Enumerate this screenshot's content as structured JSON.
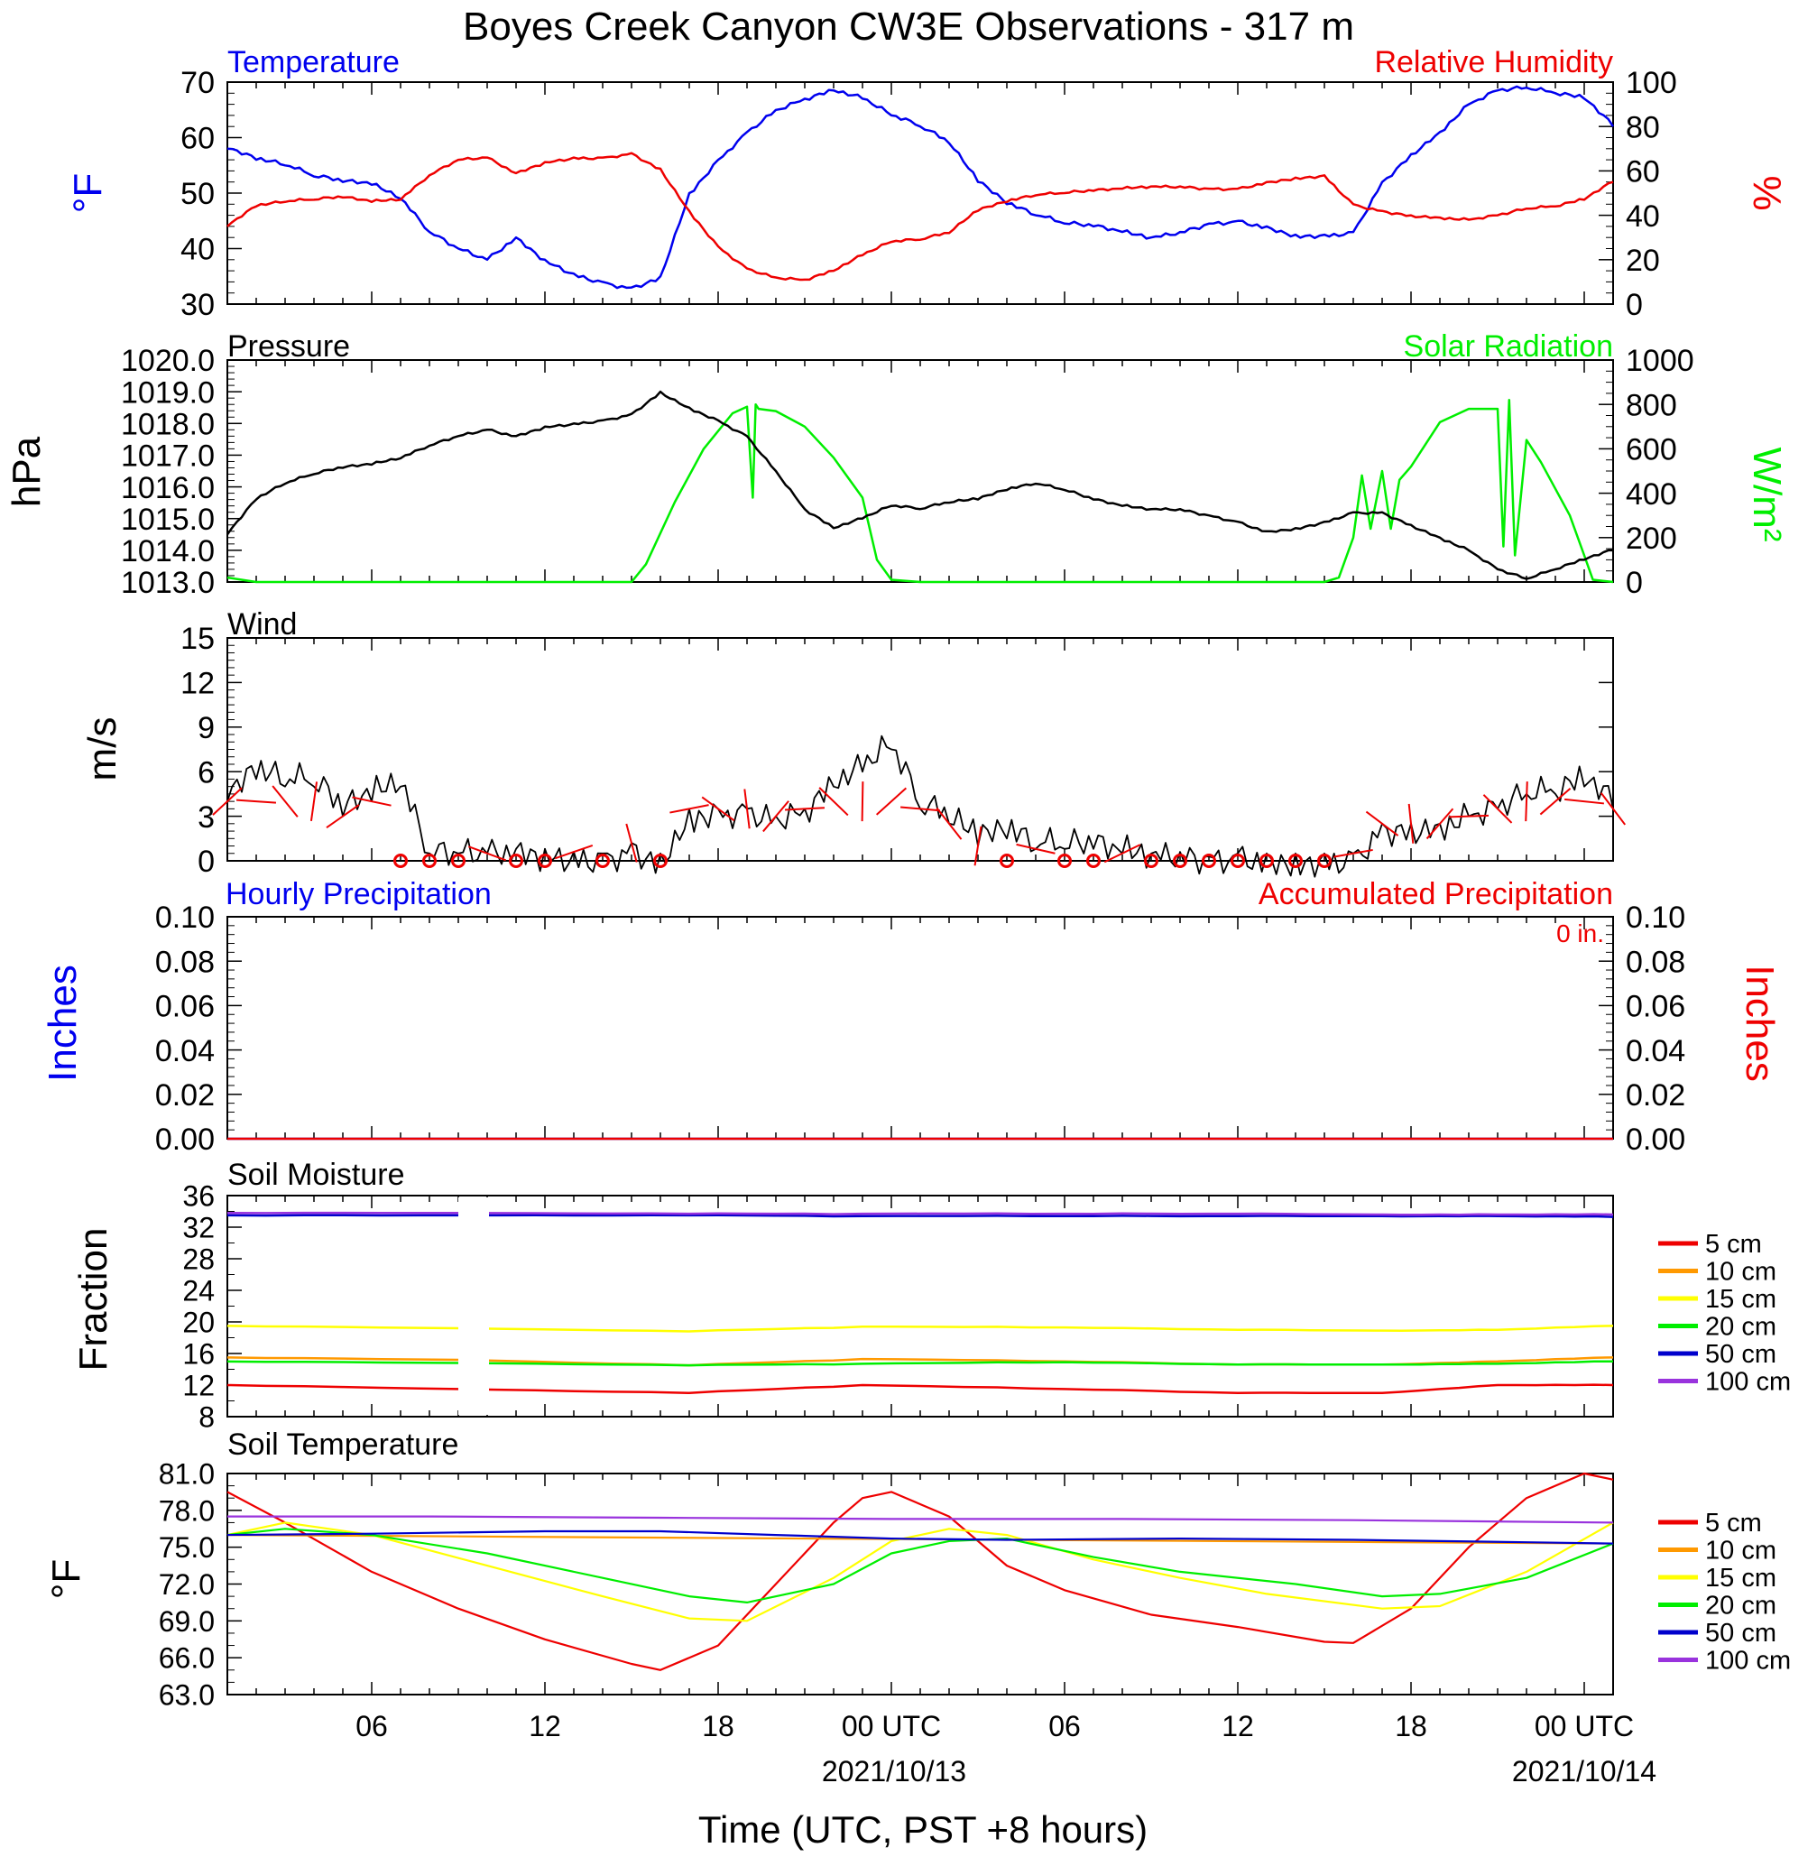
{
  "title": "Boyes Creek Canyon CW3E Observations - 317 m",
  "colors": {
    "blue": "#0000ee",
    "red": "#ee0000",
    "green": "#00ee00",
    "black": "#000000",
    "orange": "#ff9900",
    "yellow": "#ffff00",
    "purple": "#9933dd",
    "navy": "#0000cc"
  },
  "time_axis": {
    "tick_labels": [
      "06",
      "12",
      "18",
      "00 UTC",
      "06",
      "12",
      "18",
      "00 UTC"
    ],
    "date_labels": [
      "2021/10/13",
      "2021/10/14"
    ],
    "xlabel": "Time (UTC, PST +8 hours)"
  },
  "panels": {
    "temp_rh": {
      "left_title": "Temperature",
      "right_title": "Relative Humidity",
      "left_unit": "°F",
      "right_unit": "%",
      "left_ticks": [
        "70",
        "60",
        "50",
        "40",
        "30"
      ],
      "right_ticks": [
        "100",
        "80",
        "60",
        "40",
        "20",
        "0"
      ]
    },
    "pressure_solar": {
      "left_title": "Pressure",
      "right_title": "Solar Radiation",
      "left_unit": "hPa",
      "right_unit": "W/m²",
      "left_ticks": [
        "1020.0",
        "1019.0",
        "1018.0",
        "1017.0",
        "1016.0",
        "1015.0",
        "1014.0",
        "1013.0"
      ],
      "right_ticks": [
        "1000",
        "800",
        "600",
        "400",
        "200",
        "0"
      ]
    },
    "wind": {
      "title": "Wind",
      "unit": "m/s",
      "ticks": [
        "15",
        "12",
        "9",
        "6",
        "3",
        "0"
      ]
    },
    "precip": {
      "left_title": "Hourly Precipitation",
      "right_title": "Accumulated Precipitation",
      "annotation": "0 in.",
      "left_unit": "Inches",
      "right_unit": "Inches",
      "left_ticks": [
        "0.10",
        "0.08",
        "0.06",
        "0.04",
        "0.02",
        "0.00"
      ],
      "right_ticks": [
        "0.10",
        "0.08",
        "0.06",
        "0.04",
        "0.02",
        "0.00"
      ]
    },
    "soil_moisture": {
      "title": "Soil Moisture",
      "unit": "Fraction",
      "ticks": [
        "36",
        "32",
        "28",
        "24",
        "20",
        "16",
        "12",
        "8"
      ],
      "legend": [
        "5 cm",
        "10 cm",
        "15 cm",
        "20 cm",
        "50 cm",
        "100 cm"
      ]
    },
    "soil_temp": {
      "title": "Soil Temperature",
      "unit": "°F",
      "ticks": [
        "81.0",
        "78.0",
        "75.0",
        "72.0",
        "69.0",
        "66.0",
        "63.0"
      ],
      "legend": [
        "5 cm",
        "10 cm",
        "15 cm",
        "20 cm",
        "50 cm",
        "100 cm"
      ]
    }
  },
  "chart_data": [
    {
      "type": "line",
      "title": "Temperature / Relative Humidity",
      "x_range_hours_utc": [
        1,
        49
      ],
      "ylim_left": [
        30,
        70
      ],
      "ylim_right": [
        0,
        100
      ],
      "series": [
        {
          "name": "Temperature",
          "axis": "left",
          "color": "#0000ee",
          "x": [
            1,
            2,
            3,
            4,
            5,
            6,
            7,
            8,
            9,
            10,
            11,
            12,
            13,
            14,
            15,
            16,
            17,
            18,
            19,
            20,
            21,
            22,
            23,
            24,
            25,
            26,
            27,
            28,
            29,
            30,
            31,
            32,
            33,
            34,
            35,
            36,
            37,
            38,
            39,
            40,
            41,
            42,
            43,
            44,
            45,
            46,
            47,
            48,
            49
          ],
          "y": [
            58,
            56,
            55,
            53,
            52,
            51.5,
            49,
            43,
            40,
            38,
            42,
            38,
            35.5,
            34,
            33,
            35,
            50,
            56,
            61,
            65,
            67,
            68.5,
            67,
            64,
            62,
            59,
            52,
            48,
            46,
            44.5,
            44,
            43,
            42,
            43,
            44.5,
            45,
            44,
            42.5,
            42.5,
            43,
            52,
            57,
            61,
            66,
            68.5,
            69,
            68,
            67,
            62
          ]
        },
        {
          "name": "Relative Humidity",
          "axis": "right",
          "color": "#ee0000",
          "x": [
            1,
            2,
            3,
            4,
            5,
            6,
            7,
            8,
            9,
            10,
            11,
            12,
            13,
            14,
            15,
            16,
            17,
            18,
            19,
            20,
            21,
            22,
            23,
            24,
            25,
            26,
            27,
            28,
            29,
            30,
            31,
            32,
            33,
            34,
            35,
            36,
            37,
            38,
            39,
            40,
            41,
            42,
            43,
            44,
            45,
            46,
            47,
            48,
            49
          ],
          "y": [
            35,
            44,
            46,
            47,
            48,
            46,
            47,
            58,
            65,
            66,
            59,
            64,
            66,
            66,
            68,
            61,
            42,
            26,
            16,
            12,
            11,
            15,
            22,
            28,
            29,
            32,
            42,
            46,
            49,
            50,
            51,
            52,
            53,
            53,
            52,
            52,
            55,
            57,
            58,
            45,
            42,
            40,
            39,
            38,
            40,
            43,
            44,
            47,
            55
          ]
        }
      ]
    },
    {
      "type": "line",
      "title": "Pressure / Solar Radiation",
      "x_range_hours_utc": [
        1,
        49
      ],
      "ylim_left": [
        1013.0,
        1020.0
      ],
      "ylim_right": [
        0,
        1000
      ],
      "series": [
        {
          "name": "Pressure",
          "axis": "left",
          "color": "#000000",
          "x": [
            1,
            2,
            3,
            4,
            5,
            6,
            7,
            8,
            9,
            10,
            11,
            12,
            13,
            14,
            15,
            16,
            17,
            18,
            19,
            20,
            21,
            22,
            23,
            24,
            25,
            26,
            27,
            28,
            29,
            30,
            31,
            32,
            33,
            34,
            35,
            36,
            37,
            38,
            39,
            40,
            41,
            42,
            43,
            44,
            45,
            46,
            47,
            48,
            49
          ],
          "y": [
            1014.5,
            1015.6,
            1016.1,
            1016.4,
            1016.6,
            1016.7,
            1016.9,
            1017.3,
            1017.6,
            1017.8,
            1017.6,
            1017.9,
            1018.0,
            1018.1,
            1018.3,
            1019.0,
            1018.5,
            1018.1,
            1017.6,
            1016.5,
            1015.3,
            1014.7,
            1015.0,
            1015.4,
            1015.3,
            1015.5,
            1015.6,
            1015.9,
            1016.1,
            1015.9,
            1015.6,
            1015.4,
            1015.3,
            1015.3,
            1015.1,
            1014.9,
            1014.6,
            1014.7,
            1014.9,
            1015.2,
            1015.2,
            1014.8,
            1014.4,
            1014.0,
            1013.4,
            1013.1,
            1013.4,
            1013.7,
            1014.0
          ]
        },
        {
          "name": "Solar Radiation",
          "axis": "right",
          "color": "#00ee00",
          "x": [
            1,
            2,
            14,
            15,
            15.5,
            16.5,
            17.5,
            18.5,
            19,
            19.2,
            19.3,
            19.4,
            20,
            21,
            22,
            23,
            23.5,
            24,
            25,
            39,
            39.5,
            40,
            40.3,
            40.6,
            41,
            41.3,
            41.6,
            42,
            43,
            44,
            45,
            45.2,
            45.4,
            45.6,
            46,
            46.5,
            47,
            47.5,
            48,
            48.3,
            49
          ],
          "y": [
            20,
            0,
            0,
            0,
            80,
            360,
            600,
            760,
            790,
            380,
            800,
            780,
            770,
            700,
            560,
            380,
            100,
            10,
            0,
            0,
            20,
            200,
            480,
            240,
            500,
            240,
            460,
            520,
            720,
            780,
            780,
            160,
            820,
            120,
            640,
            540,
            420,
            300,
            120,
            10,
            0
          ]
        }
      ]
    },
    {
      "type": "line",
      "title": "Wind",
      "x_range_hours_utc": [
        1,
        49
      ],
      "ylim": [
        0,
        15
      ],
      "series": [
        {
          "name": "Wind",
          "color": "#000000",
          "x": [
            1,
            2,
            3,
            4,
            5,
            6,
            7,
            8,
            9,
            10,
            11,
            12,
            13,
            14,
            15,
            16,
            17,
            18,
            19,
            20,
            21,
            22,
            23,
            24,
            25,
            26,
            27,
            28,
            29,
            30,
            31,
            32,
            33,
            34,
            35,
            36,
            37,
            38,
            39,
            40,
            41,
            42,
            43,
            44,
            45,
            46,
            47,
            48,
            49
          ],
          "y": [
            4,
            5.5,
            5,
            5,
            3,
            4,
            5,
            0.5,
            0.5,
            0.5,
            0.8,
            0.8,
            0.6,
            0.5,
            1.2,
            0.5,
            3.5,
            3.5,
            3.5,
            3.0,
            3.5,
            5,
            6,
            7.5,
            3.5,
            2.5,
            1,
            1.5,
            0.8,
            0.8,
            0.8,
            0.5,
            0.5,
            0.6,
            0.3,
            0.5,
            0.5,
            0.5,
            0.5,
            0.5,
            2.5,
            2.5,
            2.5,
            3.0,
            3.5,
            4.5,
            4.5,
            5.0,
            3.5
          ]
        }
      ],
      "calm_hours": [
        7,
        8,
        9,
        11,
        12,
        14,
        16,
        28,
        30,
        31,
        33,
        34,
        35,
        36,
        37,
        38,
        39
      ]
    },
    {
      "type": "line",
      "title": "Hourly / Accumulated Precipitation",
      "x_range_hours_utc": [
        1,
        49
      ],
      "ylim_left": [
        0,
        0.1
      ],
      "ylim_right": [
        0,
        0.1
      ],
      "series": [
        {
          "name": "Hourly Precipitation",
          "color": "#0000ee",
          "x": [
            1,
            49
          ],
          "y": [
            0,
            0
          ]
        },
        {
          "name": "Accumulated Precipitation",
          "color": "#ee0000",
          "x": [
            1,
            49
          ],
          "y": [
            0,
            0
          ]
        }
      ]
    },
    {
      "type": "line",
      "title": "Soil Moisture",
      "x_range_hours_utc": [
        1,
        49
      ],
      "ylim": [
        8,
        36
      ],
      "series": [
        {
          "name": "5 cm",
          "color": "#ee0000",
          "x": [
            1,
            9,
            17,
            23,
            30,
            36,
            41,
            45,
            49
          ],
          "y": [
            12.0,
            11.5,
            11.0,
            12.0,
            11.5,
            11.0,
            11.0,
            12.0,
            12.0
          ]
        },
        {
          "name": "10 cm",
          "color": "#ff9900",
          "x": [
            1,
            9,
            17,
            23,
            30,
            36,
            41,
            45,
            49
          ],
          "y": [
            15.5,
            15.2,
            14.5,
            15.3,
            15.0,
            14.6,
            14.6,
            15.0,
            15.5
          ]
        },
        {
          "name": "15 cm",
          "color": "#ffff00",
          "x": [
            1,
            9,
            17,
            23,
            30,
            36,
            41,
            45,
            49
          ],
          "y": [
            19.5,
            19.2,
            18.8,
            19.4,
            19.3,
            19.0,
            18.9,
            19.0,
            19.5
          ]
        },
        {
          "name": "20 cm",
          "color": "#00ee00",
          "x": [
            1,
            9,
            17,
            23,
            30,
            36,
            41,
            45,
            49
          ],
          "y": [
            15.0,
            14.8,
            14.5,
            14.7,
            14.9,
            14.6,
            14.6,
            14.7,
            15.0
          ]
        },
        {
          "name": "50 cm",
          "color": "#0000cc",
          "x": [
            1,
            9,
            17,
            23,
            30,
            36,
            41,
            45,
            49
          ],
          "y": [
            33.5,
            33.5,
            33.5,
            33.4,
            33.4,
            33.4,
            33.4,
            33.4,
            33.3
          ]
        },
        {
          "name": "100 cm",
          "color": "#9933dd",
          "x": [
            1,
            9,
            17,
            23,
            30,
            36,
            41,
            45,
            49
          ],
          "y": [
            33.8,
            33.8,
            33.7,
            33.7,
            33.7,
            33.7,
            33.6,
            33.6,
            33.6
          ]
        }
      ]
    },
    {
      "type": "line",
      "title": "Soil Temperature",
      "x_range_hours_utc": [
        1,
        49
      ],
      "ylim": [
        63,
        81
      ],
      "series": [
        {
          "name": "5 cm",
          "color": "#ee0000",
          "x": [
            1,
            3,
            6,
            9,
            12,
            15,
            16,
            18,
            20,
            22,
            23,
            24,
            26,
            28,
            30,
            33,
            36,
            39,
            40,
            42,
            44,
            46,
            48,
            49
          ],
          "y": [
            79.5,
            77,
            73,
            70,
            67.5,
            65.5,
            65,
            67,
            72,
            77,
            79,
            79.5,
            77.5,
            73.5,
            71.5,
            69.5,
            68.5,
            67.3,
            67.2,
            70,
            75,
            79,
            81,
            80.5
          ]
        },
        {
          "name": "10 cm",
          "color": "#ff9900",
          "x": [
            1,
            49
          ],
          "y": [
            76.0,
            75.3
          ]
        },
        {
          "name": "15 cm",
          "color": "#ffff00",
          "x": [
            1,
            3,
            6,
            10,
            14,
            17,
            19,
            22,
            24,
            26,
            28,
            31,
            34,
            37,
            41,
            43,
            46,
            49
          ],
          "y": [
            76.0,
            77,
            76,
            73.5,
            71,
            69.2,
            69.0,
            72.5,
            75.5,
            76.5,
            76,
            74,
            72.5,
            71.2,
            70.0,
            70.2,
            73,
            77
          ]
        },
        {
          "name": "20 cm",
          "color": "#00ee00",
          "x": [
            1,
            3,
            6,
            10,
            14,
            17,
            19,
            22,
            24,
            26,
            28,
            31,
            34,
            38,
            41,
            43,
            46,
            49
          ],
          "y": [
            76.0,
            76.5,
            76,
            74.5,
            72.5,
            71,
            70.5,
            72,
            74.5,
            75.5,
            75.7,
            74.2,
            73,
            72,
            71,
            71.2,
            72.5,
            75.3
          ]
        },
        {
          "name": "50 cm",
          "color": "#0000cc",
          "x": [
            1,
            6,
            12,
            16,
            20,
            24,
            28,
            34,
            40,
            46,
            49
          ],
          "y": [
            76.0,
            76.1,
            76.3,
            76.3,
            76.0,
            75.7,
            75.6,
            75.7,
            75.6,
            75.4,
            75.3
          ]
        },
        {
          "name": "100 cm",
          "color": "#9933dd",
          "x": [
            1,
            8,
            16,
            24,
            32,
            40,
            49
          ],
          "y": [
            77.5,
            77.5,
            77.4,
            77.3,
            77.3,
            77.2,
            77.0
          ]
        }
      ]
    }
  ]
}
